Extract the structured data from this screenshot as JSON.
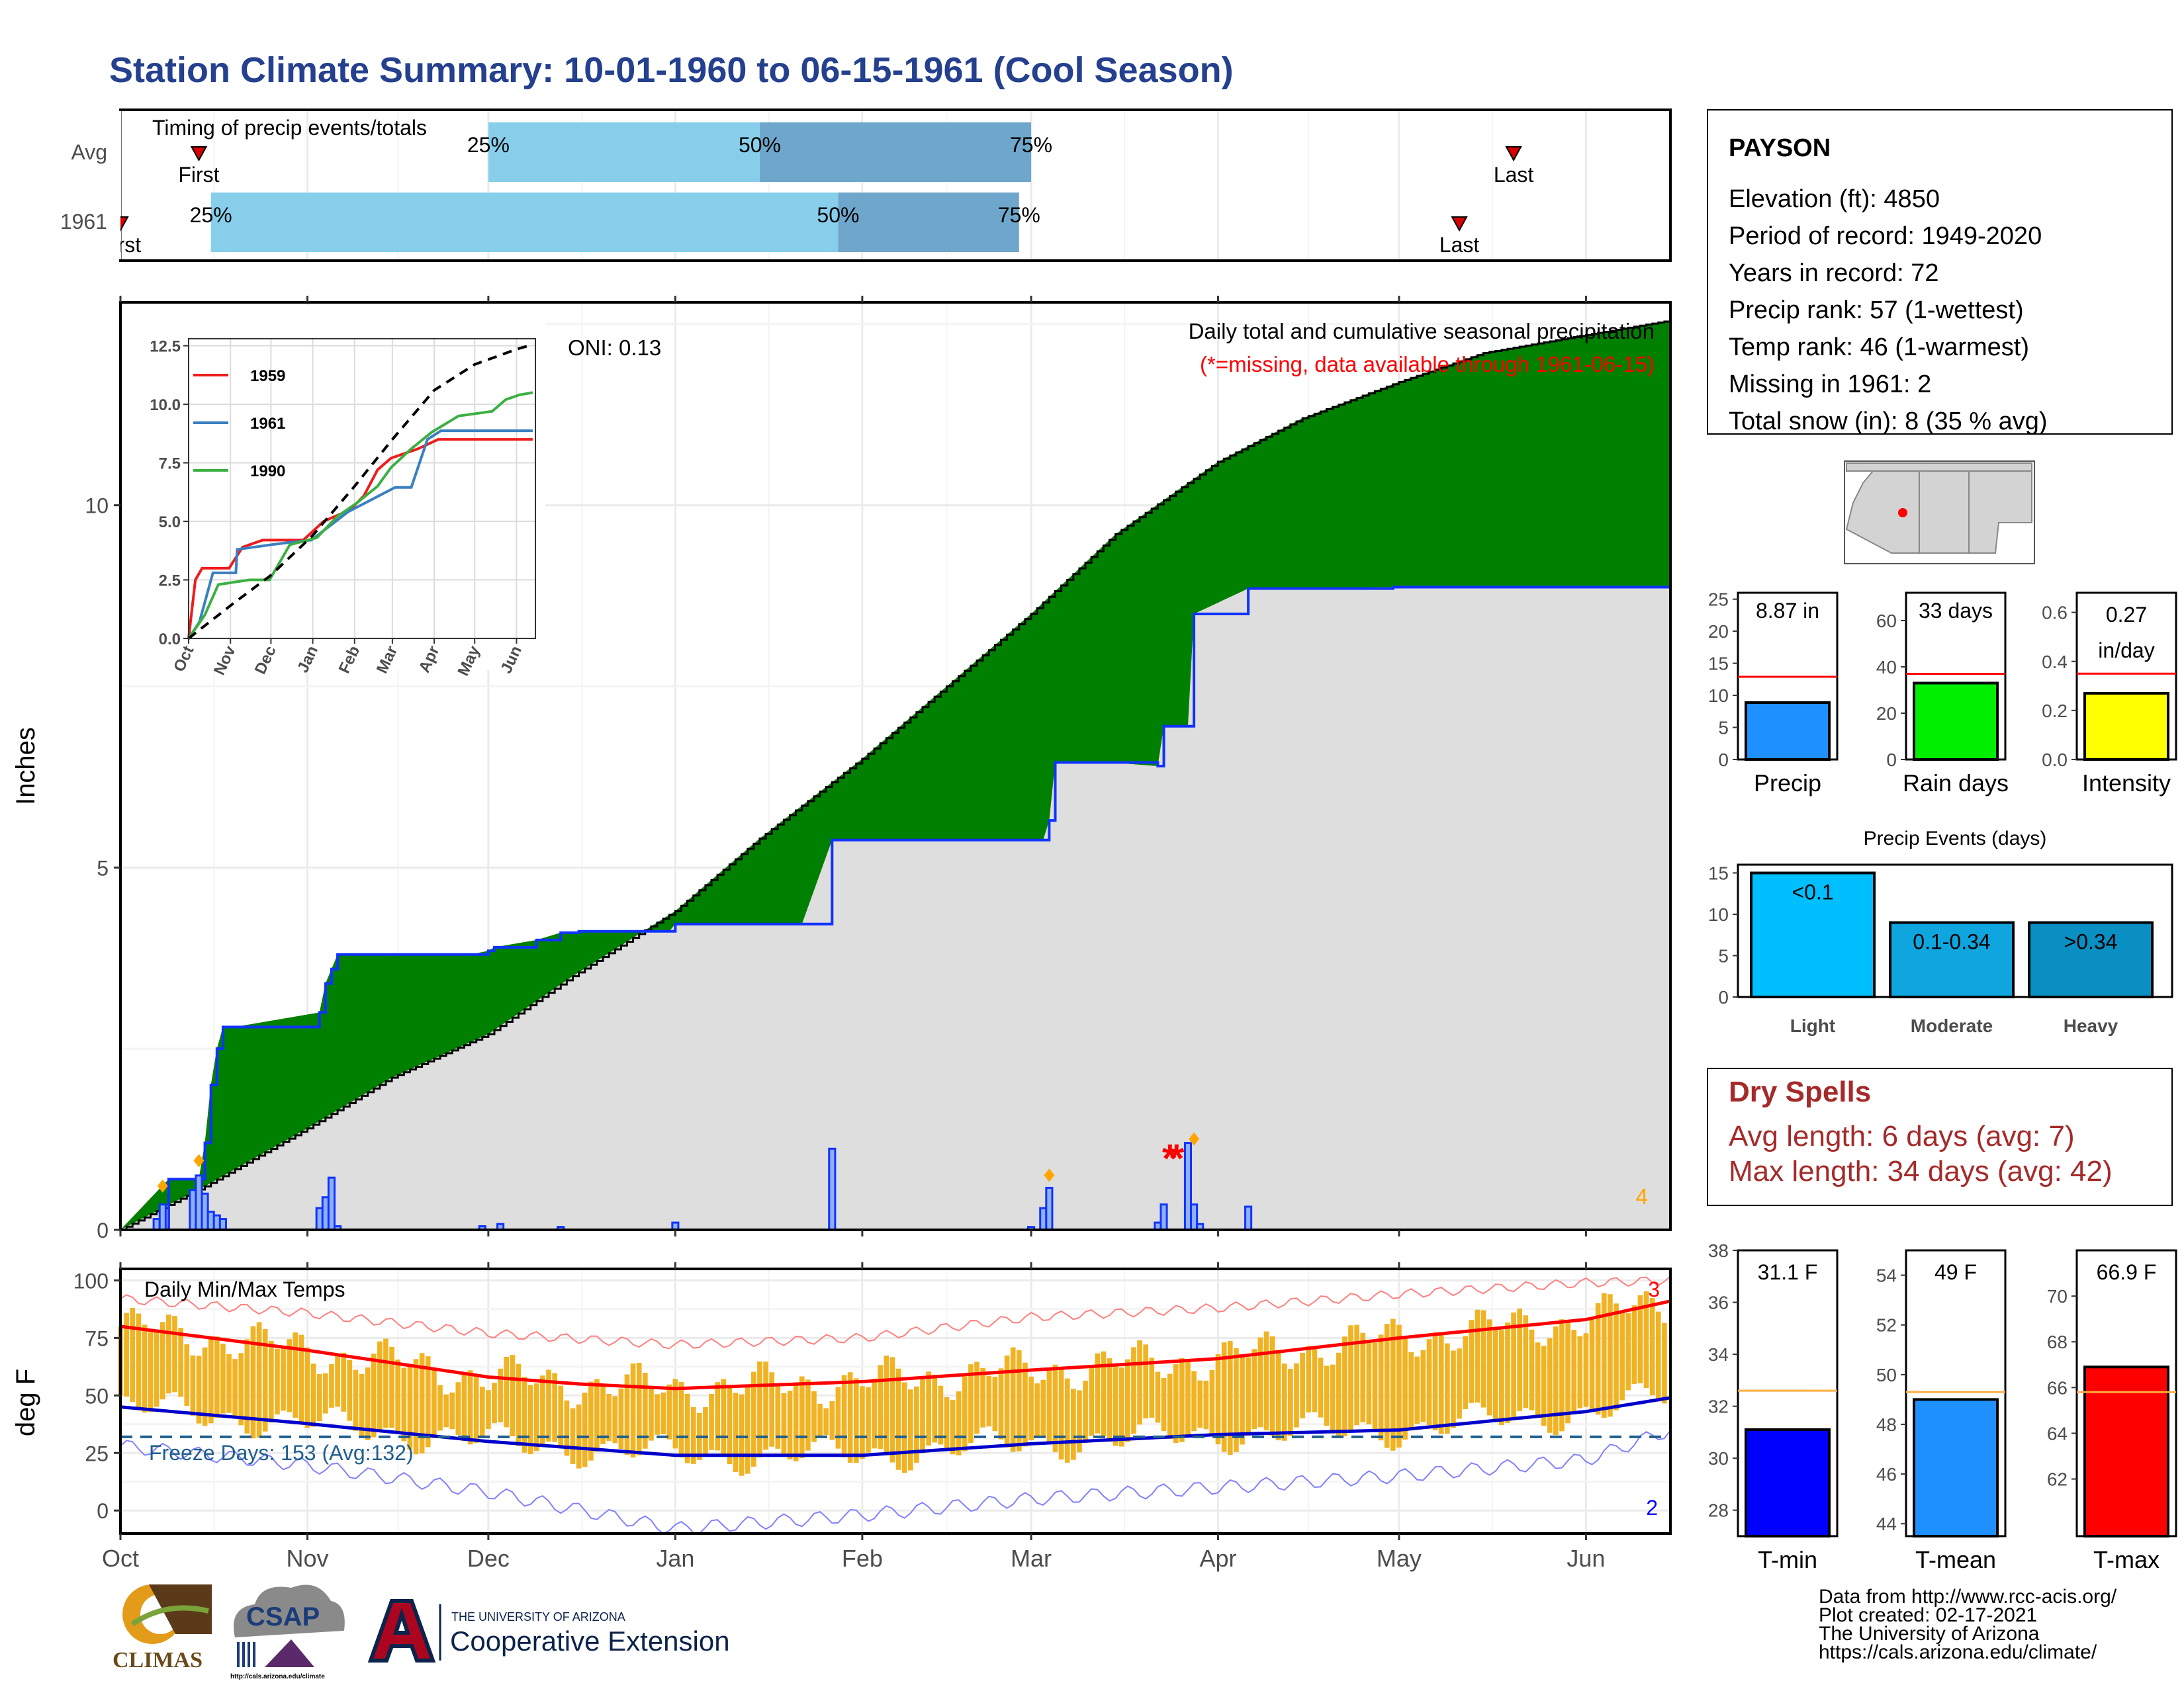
{
  "title": "Station Climate Summary: 10-01-1960 to 06-15-1961 (Cool Season)",
  "colors": {
    "title": "#24408e",
    "q_light": "#87ceeb",
    "q_dark": "#6ea6cc",
    "marker": "#d90000",
    "deficit": "#8b5a00",
    "surplus": "#008000",
    "season_area": "#dedede",
    "daily_bar": "#1033ff",
    "daily_bar_light": "#8fb0ff",
    "temp_bar": "#f0b323",
    "tmax": "#ff0000",
    "tmin": "#0000cc",
    "freeze": "#1f5f8f",
    "avg_line": "#ffae42",
    "dry": "#a52a2a",
    "oni": "#ffa500",
    "precip": "#1e90ff",
    "rain_days": "#00ee00",
    "intensity": "#ffff00",
    "light": "#00bfff",
    "moderate": "#0fa6e0",
    "heavy": "#0a8fc2",
    "tmin_bar": "#0000ff",
    "tmean_bar": "#1e90ff",
    "tmax_bar": "#ff0000"
  },
  "timing": {
    "title": "Timing of precip events/totals",
    "rows": [
      {
        "label": "Avg",
        "first": "Oct 14",
        "q25": "Dec 1",
        "q50": "Jan 15",
        "q75": "Mar 1",
        "last": "May 20",
        "first_label": "First",
        "last_label": "Last"
      },
      {
        "label": "1961",
        "first": "Oct 1",
        "q25": "Oct 16",
        "q50": "Jan 28",
        "q75": "Feb 27",
        "last": "May 11",
        "first_label": "First",
        "last_label": "Last"
      }
    ],
    "q_labels": [
      "25%",
      "50%",
      "75%"
    ]
  },
  "chart_data": [
    {
      "type": "area",
      "name": "cumulative_precip",
      "title": "Daily total and cumulative seasonal precipitation",
      "subtitle": "(*=missing, data available through 1961-06-15)",
      "ylabel": "Inches",
      "ylim": [
        0,
        12.8
      ],
      "yticks": [
        0,
        5,
        10
      ],
      "xlim": [
        "1960-10-01",
        "1961-06-15"
      ],
      "x_tick_labels": [
        "Oct",
        "Nov",
        "Dec",
        "Jan",
        "Feb",
        "Mar",
        "Apr",
        "May",
        "Jun"
      ],
      "oni": "ONI: 0.13",
      "event_count_label": "4",
      "average_cumulative": {
        "dates": [
          "1960-10-01",
          "1960-10-15",
          "1960-11-01",
          "1960-11-15",
          "1960-12-01",
          "1960-12-15",
          "1961-01-01",
          "1961-01-15",
          "1961-02-01",
          "1961-02-15",
          "1961-03-01",
          "1961-03-15",
          "1961-04-01",
          "1961-04-15",
          "1961-05-01",
          "1961-05-15",
          "1961-06-01",
          "1961-06-15"
        ],
        "values": [
          0.0,
          0.6,
          1.4,
          2.1,
          2.7,
          3.5,
          4.4,
          5.4,
          6.5,
          7.5,
          8.5,
          9.6,
          10.6,
          11.2,
          11.7,
          12.1,
          12.35,
          12.55
        ]
      },
      "observed_cumulative": {
        "dates": [
          "1960-10-01",
          "1960-10-09",
          "1960-10-14",
          "1960-10-15",
          "1960-10-16",
          "1960-10-17",
          "1960-10-18",
          "1960-10-20",
          "1960-11-03",
          "1960-11-04",
          "1960-11-05",
          "1960-11-06",
          "1960-11-28",
          "1960-12-01",
          "1960-12-02",
          "1960-12-09",
          "1960-12-13",
          "1960-12-16",
          "1960-12-31",
          "1961-01-01",
          "1961-01-22",
          "1961-01-27",
          "1961-03-03",
          "1961-03-04",
          "1961-03-05",
          "1961-03-14",
          "1961-03-22",
          "1961-03-23",
          "1961-03-27",
          "1961-03-28",
          "1961-04-06",
          "1961-04-30",
          "1961-06-15"
        ],
        "values": [
          0.0,
          0.7,
          0.7,
          1.2,
          2.0,
          2.5,
          2.8,
          2.8,
          3.0,
          3.4,
          3.6,
          3.8,
          3.8,
          3.85,
          3.9,
          4.0,
          4.1,
          4.12,
          4.12,
          4.22,
          4.22,
          5.38,
          5.38,
          5.65,
          6.45,
          6.45,
          6.4,
          6.95,
          6.95,
          8.5,
          8.85,
          8.87,
          8.87
        ]
      },
      "daily_totals": [
        {
          "date": "1960-10-07",
          "value": 0.15
        },
        {
          "date": "1960-10-08",
          "value": 0.35
        },
        {
          "date": "1960-10-13",
          "value": 0.55
        },
        {
          "date": "1960-10-14",
          "value": 0.75
        },
        {
          "date": "1960-10-15",
          "value": 0.5
        },
        {
          "date": "1960-10-16",
          "value": 0.25
        },
        {
          "date": "1960-10-17",
          "value": 0.2
        },
        {
          "date": "1960-10-18",
          "value": 0.15
        },
        {
          "date": "1960-11-03",
          "value": 0.3
        },
        {
          "date": "1960-11-04",
          "value": 0.45
        },
        {
          "date": "1960-11-05",
          "value": 0.72
        },
        {
          "date": "1960-11-06",
          "value": 0.05
        },
        {
          "date": "1960-11-30",
          "value": 0.05
        },
        {
          "date": "1960-12-03",
          "value": 0.08
        },
        {
          "date": "1960-12-13",
          "value": 0.04
        },
        {
          "date": "1961-01-01",
          "value": 0.1
        },
        {
          "date": "1961-01-27",
          "value": 1.12
        },
        {
          "date": "1961-03-01",
          "value": 0.04
        },
        {
          "date": "1961-03-03",
          "value": 0.3
        },
        {
          "date": "1961-03-04",
          "value": 0.58
        },
        {
          "date": "1961-03-22",
          "value": 0.1
        },
        {
          "date": "1961-03-23",
          "value": 0.35
        },
        {
          "date": "1961-03-27",
          "value": 1.2
        },
        {
          "date": "1961-03-28",
          "value": 0.35
        },
        {
          "date": "1961-03-29",
          "value": 0.08
        },
        {
          "date": "1961-04-06",
          "value": 0.32
        }
      ],
      "flagged_events": [
        {
          "date": "1960-10-08",
          "value": 0.55
        },
        {
          "date": "1960-10-14",
          "value": 0.9
        },
        {
          "date": "1961-03-04",
          "value": 0.7
        },
        {
          "date": "1961-03-28",
          "value": 1.2
        }
      ],
      "missing": [
        {
          "date": "1961-03-24",
          "value": 1.0
        }
      ]
    },
    {
      "type": "line",
      "name": "inset_cumulative",
      "ylim": [
        0,
        12.8
      ],
      "yticks": [
        0.0,
        2.5,
        5.0,
        7.5,
        10.0,
        12.5
      ],
      "ytick_labels": [
        "0.0",
        "2.5",
        "5.0",
        "7.5",
        "10.0",
        "12.5"
      ],
      "x_tick_labels": [
        "Oct",
        "Nov",
        "Dec",
        "Jan",
        "Feb",
        "Mar",
        "Apr",
        "May",
        "Jun"
      ],
      "series": [
        {
          "name": "1959",
          "color": "#ee1c1c",
          "points": [
            [
              0,
              0
            ],
            [
              5,
              2.5
            ],
            [
              10,
              3
            ],
            [
              30,
              3
            ],
            [
              40,
              3.9
            ],
            [
              55,
              4.2
            ],
            [
              85,
              4.2
            ],
            [
              100,
              5
            ],
            [
              120,
              5.5
            ],
            [
              130,
              6.1
            ],
            [
              140,
              7.2
            ],
            [
              150,
              7.7
            ],
            [
              170,
              8.1
            ],
            [
              185,
              8.5
            ],
            [
              205,
              8.5
            ],
            [
              255,
              8.5
            ]
          ]
        },
        {
          "name": "1961",
          "color": "#3a7fc1",
          "points": [
            [
              0,
              0
            ],
            [
              8,
              0.7
            ],
            [
              18,
              2.8
            ],
            [
              35,
              2.8
            ],
            [
              36,
              3.8
            ],
            [
              61,
              4.0
            ],
            [
              75,
              4.1
            ],
            [
              91,
              4.2
            ],
            [
              118,
              5.4
            ],
            [
              153,
              6.45
            ],
            [
              165,
              6.45
            ],
            [
              177,
              8.5
            ],
            [
              187,
              8.87
            ],
            [
              255,
              8.87
            ]
          ]
        },
        {
          "name": "1990",
          "color": "#3cb043",
          "points": [
            [
              0,
              0
            ],
            [
              12,
              1
            ],
            [
              22,
              2.3
            ],
            [
              45,
              2.5
            ],
            [
              60,
              2.5
            ],
            [
              75,
              4.0
            ],
            [
              95,
              4.3
            ],
            [
              110,
              5.2
            ],
            [
              125,
              5.8
            ],
            [
              140,
              6.5
            ],
            [
              150,
              7.3
            ],
            [
              165,
              8.1
            ],
            [
              180,
              8.8
            ],
            [
              200,
              9.5
            ],
            [
              225,
              9.7
            ],
            [
              235,
              10.2
            ],
            [
              245,
              10.4
            ],
            [
              255,
              10.5
            ]
          ]
        },
        {
          "name": "Average",
          "color": "#000000",
          "dashed": true,
          "points": [
            [
              0,
              0
            ],
            [
              31,
              1.4
            ],
            [
              61,
              2.7
            ],
            [
              92,
              4.4
            ],
            [
              123,
              6.5
            ],
            [
              151,
              8.5
            ],
            [
              182,
              10.6
            ],
            [
              212,
              11.7
            ],
            [
              243,
              12.35
            ],
            [
              255,
              12.55
            ]
          ]
        }
      ]
    },
    {
      "type": "bar",
      "name": "daily_temps",
      "title": "Daily Min/Max Temps",
      "ylabel": "deg F",
      "ylim": [
        -10,
        105
      ],
      "yticks": [
        0,
        25,
        50,
        75,
        100
      ],
      "x_tick_labels": [
        "Oct",
        "Nov",
        "Dec",
        "Jan",
        "Feb",
        "Mar",
        "Apr",
        "May",
        "Jun"
      ],
      "freeze_days_label": "Freeze Days: 153 (Avg:132)",
      "freeze_threshold": 32,
      "tmax_normal": {
        "doy": [
          0,
          30,
          61,
          76,
          92,
          123,
          151,
          182,
          212,
          243,
          257
        ],
        "values": [
          80,
          70,
          58,
          55,
          53,
          56,
          61,
          66,
          75,
          83,
          91
        ]
      },
      "tmin_normal": {
        "doy": [
          0,
          30,
          61,
          92,
          123,
          151,
          182,
          212,
          243,
          257
        ],
        "values": [
          45,
          38,
          30,
          24,
          24,
          29,
          33,
          35,
          43,
          49
        ]
      },
      "tmax_record": {
        "doy": [
          0,
          30,
          61,
          92,
          123,
          151,
          182,
          212,
          243,
          257
        ],
        "values": [
          92,
          86,
          77,
          72,
          75,
          84,
          88,
          94,
          99,
          100
        ]
      },
      "tmin_record": {
        "doy": [
          0,
          30,
          61,
          92,
          123,
          151,
          182,
          212,
          243,
          257
        ],
        "values": [
          28,
          20,
          8,
          -8,
          -2,
          5,
          10,
          15,
          22,
          35
        ]
      },
      "record_high_count": "3",
      "record_low_count": "2"
    },
    {
      "type": "bar",
      "name": "precip_total",
      "categories": [
        "Precip"
      ],
      "values": [
        8.87
      ],
      "average": 12.9,
      "ylim": [
        0,
        26
      ],
      "yticks": [
        0,
        5,
        10,
        15,
        20,
        25
      ],
      "data_label": "8.87 in"
    },
    {
      "type": "bar",
      "name": "rain_days",
      "categories": [
        "Rain days"
      ],
      "values": [
        33
      ],
      "average": 37,
      "ylim": [
        0,
        72
      ],
      "yticks": [
        0,
        20,
        40,
        60
      ],
      "data_label": "33 days"
    },
    {
      "type": "bar",
      "name": "intensity",
      "categories": [
        "Intensity"
      ],
      "values": [
        0.27
      ],
      "average": 0.35,
      "ylim": [
        0,
        0.68
      ],
      "yticks": [
        0.0,
        0.2,
        0.4,
        0.6
      ],
      "ytick_labels": [
        "0.0",
        "0.2",
        "0.4",
        "0.6"
      ],
      "data_label": "0.27 in/day"
    },
    {
      "type": "bar",
      "name": "precip_events",
      "title": "Precip Events (days)",
      "categories": [
        "Light",
        "Moderate",
        "Heavy"
      ],
      "bar_labels": [
        "<0.1",
        "0.1-0.34",
        ">0.34"
      ],
      "values": [
        15,
        9,
        9
      ],
      "ylim": [
        0,
        16
      ],
      "yticks": [
        0,
        5,
        10,
        15
      ]
    },
    {
      "type": "bar",
      "name": "tmin",
      "categories": [
        "T-min"
      ],
      "values": [
        31.1
      ],
      "average": 32.6,
      "ylim": [
        27,
        38
      ],
      "yticks": [
        28,
        30,
        32,
        34,
        36,
        38
      ],
      "data_label": "31.1 F"
    },
    {
      "type": "bar",
      "name": "tmean",
      "categories": [
        "T-mean"
      ],
      "values": [
        49.0
      ],
      "average": 49.3,
      "ylim": [
        43.5,
        55
      ],
      "yticks": [
        44,
        46,
        48,
        50,
        52,
        54
      ],
      "data_label": "49 F"
    },
    {
      "type": "bar",
      "name": "tmax",
      "categories": [
        "T-max"
      ],
      "values": [
        66.9
      ],
      "average": 65.8,
      "ylim": [
        59.5,
        72
      ],
      "yticks": [
        62,
        64,
        66,
        68,
        70
      ],
      "data_label": "66.9 F"
    }
  ],
  "station": {
    "name": "PAYSON",
    "lines": [
      "Elevation (ft): 4850",
      "Period of record: 1949-2020",
      "Years in record: 72",
      "Precip rank: 57 (1-wettest)",
      "Temp rank: 46 (1-warmest)",
      "Missing in 1961: 2",
      "Total snow (in): 8 (35 % avg)"
    ]
  },
  "dry_spells": {
    "title": "Dry Spells",
    "avg_length": "Avg length: 6 days (avg: 7)",
    "max_length": "Max length: 34 days (avg: 42)"
  },
  "footer": {
    "lines": [
      "Data from http://www.rcc-acis.org/",
      "Plot created: 02-17-2021",
      "The University of Arizona",
      "https://cals.arizona.edu/climate/"
    ],
    "logos": {
      "climas": "CLIMAS",
      "csap": "CSAP",
      "csap_url": "http://cals.arizona.edu/climate",
      "ua_top": "THE UNIVERSITY OF ARIZONA",
      "ua_bottom": "Cooperative Extension"
    }
  }
}
